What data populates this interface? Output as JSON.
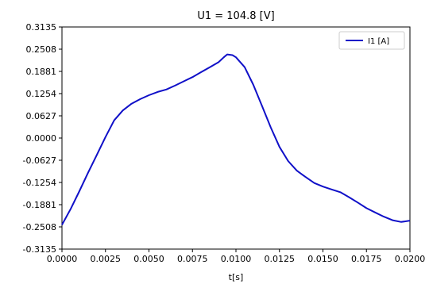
{
  "chart_data": {
    "type": "line",
    "title": "U1 = 104.8 [V]",
    "xlabel": "t[s]",
    "ylabel": "",
    "xlim": [
      0.0,
      0.02
    ],
    "ylim": [
      -0.3135,
      0.3135
    ],
    "x_ticks": [
      "0.0000",
      "0.0025",
      "0.0050",
      "0.0075",
      "0.0100",
      "0.0125",
      "0.0150",
      "0.0175",
      "0.0200"
    ],
    "y_ticks": [
      "0.3135",
      "0.2508",
      "0.1881",
      "0.1254",
      "0.0627",
      "0.0000",
      "-0.0627",
      "-0.1254",
      "-0.1881",
      "-0.2508",
      "-0.3135"
    ],
    "grid": false,
    "legend_position": "top-right",
    "series": [
      {
        "name": "I1 [A]",
        "color": "#1010c8",
        "x": [
          0.0,
          0.0005,
          0.001,
          0.0015,
          0.002,
          0.0025,
          0.003,
          0.0035,
          0.004,
          0.0045,
          0.005,
          0.0055,
          0.006,
          0.0065,
          0.007,
          0.0075,
          0.008,
          0.0085,
          0.009,
          0.0093,
          0.0095,
          0.0098,
          0.01,
          0.0105,
          0.011,
          0.0115,
          0.012,
          0.0125,
          0.013,
          0.0135,
          0.014,
          0.0145,
          0.015,
          0.0155,
          0.016,
          0.0165,
          0.017,
          0.0175,
          0.018,
          0.0185,
          0.019,
          0.0195,
          0.02
        ],
        "values": [
          -0.245,
          -0.2,
          -0.15,
          -0.098,
          -0.048,
          0.003,
          0.05,
          0.078,
          0.097,
          0.11,
          0.121,
          0.13,
          0.137,
          0.148,
          0.16,
          0.172,
          0.186,
          0.2,
          0.214,
          0.228,
          0.236,
          0.234,
          0.228,
          0.2,
          0.15,
          0.09,
          0.03,
          -0.025,
          -0.065,
          -0.092,
          -0.11,
          -0.127,
          -0.137,
          -0.145,
          -0.153,
          -0.167,
          -0.182,
          -0.198,
          -0.21,
          -0.222,
          -0.232,
          -0.237,
          -0.233
        ]
      }
    ]
  }
}
